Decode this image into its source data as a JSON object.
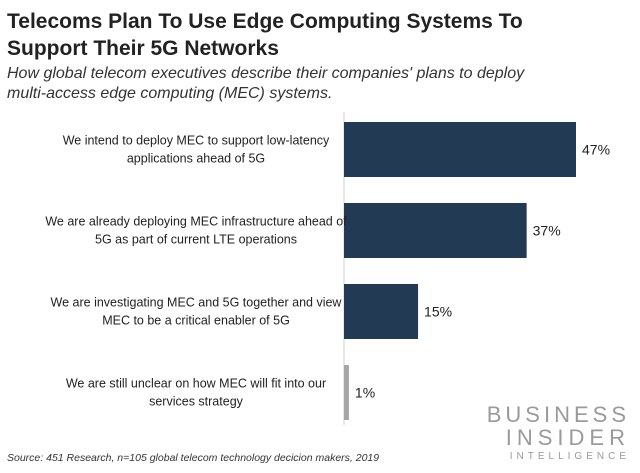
{
  "header": {
    "title_line1": "Telecoms Plan To Use Edge Computing Systems To",
    "title_line2": "Support Their 5G Networks",
    "subtitle_line1": "How global telecom executives describe their companies' plans to deploy",
    "subtitle_line2": "multi-access edge computing (MEC) systems."
  },
  "chart_data": {
    "type": "bar",
    "orientation": "horizontal",
    "title": "Telecoms Plan To Use Edge Computing Systems To Support Their 5G Networks",
    "subtitle": "How global telecom executives describe their companies' plans to deploy multi-access edge computing (MEC) systems.",
    "categories": [
      [
        "We intend to deploy MEC to support low-latency",
        "applications ahead of 5G"
      ],
      [
        "We are already deploying MEC infrastructure ahead of",
        "5G as part of current LTE operations"
      ],
      [
        "We are investigating MEC and 5G together and view",
        "MEC to be a critical enabler of 5G"
      ],
      [
        "We are still unclear on how MEC will fit into our",
        "services strategy"
      ]
    ],
    "values": [
      47,
      37,
      15,
      1
    ],
    "value_labels": [
      "47%",
      "37%",
      "15%",
      "1%"
    ],
    "bar_colors": [
      "#223a53",
      "#223a53",
      "#223a53",
      "#a6a6a6"
    ],
    "xlim": [
      0,
      50
    ],
    "grid": false,
    "legend": "none"
  },
  "footer": {
    "source": "Source: 451 Research, n=105 global telecom technology decicion makers, 2019",
    "brand_line1": "BUSINESS",
    "brand_line2": "INSIDER",
    "brand_line3": "INTELLIGENCE"
  }
}
